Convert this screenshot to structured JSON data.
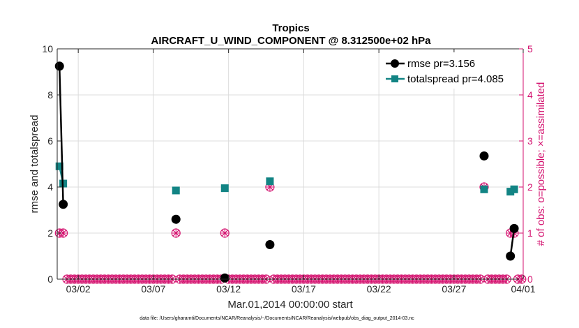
{
  "chart_data": {
    "type": "line",
    "title": "Tropics",
    "subtitle": "AIRCRAFT_U_WIND_COMPONENT @ 8.312500e+02 hPa",
    "xlabel": "Mar.01,2014 00:00:00 start",
    "ylabel": "rmse and totalspread",
    "y2label": "# of obs: o=possible; ×=assimilated",
    "footer": "data file: /Users/gharamti/Documents/NCAR/Reanalysis/~/Documents/NCAR/Reanalysis/webpub/obs_diag_output_2014-03.nc",
    "xlim": [
      0.6,
      31.6
    ],
    "ylim": [
      0,
      10
    ],
    "y2lim": [
      0,
      5
    ],
    "x_ticks": [
      2,
      7,
      12,
      17,
      22,
      27,
      32
    ],
    "x_tick_labels": [
      "03/02",
      "03/07",
      "03/12",
      "03/17",
      "03/22",
      "03/27",
      "04/01"
    ],
    "y_ticks": [
      0,
      2,
      4,
      6,
      8,
      10
    ],
    "y_tick_labels": [
      "0",
      "2",
      "4",
      "6",
      "8",
      "10"
    ],
    "y2_ticks": [
      0,
      1,
      2,
      3,
      4,
      5
    ],
    "y2_tick_labels": [
      "0",
      "1",
      "2",
      "3",
      "4",
      "5"
    ],
    "grid": true,
    "legend_position": "top-right",
    "colors": {
      "rmse": "#000000",
      "spread": "#128484",
      "obs": "#d4126f",
      "grid": "#dcdcdc"
    },
    "series": [
      {
        "name": "rmse pr=3.156",
        "key": "rmse",
        "points": [
          [
            0.75,
            9.25
          ],
          [
            1.0,
            3.25
          ],
          [
            8.5,
            2.6
          ],
          [
            11.75,
            0.05
          ],
          [
            14.75,
            1.5
          ],
          [
            29.0,
            5.35
          ],
          [
            30.75,
            1.0
          ],
          [
            31.0,
            2.2
          ]
        ]
      },
      {
        "name": "totalspread pr=4.085",
        "key": "spread",
        "points": [
          [
            0.75,
            4.9
          ],
          [
            1.0,
            4.15
          ],
          [
            8.5,
            3.85
          ],
          [
            11.75,
            3.95
          ],
          [
            14.75,
            4.25
          ],
          [
            29.0,
            3.9
          ],
          [
            30.75,
            3.8
          ],
          [
            31.0,
            3.9
          ]
        ]
      }
    ],
    "obs_count": {
      "x_start": 0.75,
      "x_step": 0.25,
      "x_end": 31.5,
      "nonzero": [
        [
          0.75,
          1
        ],
        [
          1.0,
          1
        ],
        [
          8.5,
          1
        ],
        [
          11.75,
          1
        ],
        [
          14.75,
          2
        ],
        [
          29.0,
          2
        ],
        [
          30.75,
          1
        ],
        [
          31.0,
          1
        ]
      ],
      "default": 0
    }
  }
}
